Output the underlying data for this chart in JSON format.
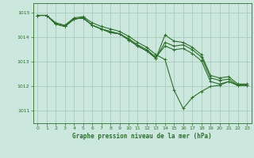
{
  "title": "Graphe pression niveau de la mer (hPa)",
  "background_color": "#cce8de",
  "grid_color": "#aaccbb",
  "line_color": "#2d6e2d",
  "xlim": [
    -0.5,
    23.5
  ],
  "ylim": [
    1010.5,
    1015.4
  ],
  "yticks": [
    1011,
    1012,
    1013,
    1014,
    1015
  ],
  "xticks": [
    0,
    1,
    2,
    3,
    4,
    5,
    6,
    7,
    8,
    9,
    10,
    11,
    12,
    13,
    14,
    15,
    16,
    17,
    18,
    19,
    20,
    21,
    22,
    23
  ],
  "series": [
    [
      1014.9,
      1014.9,
      1014.6,
      1014.5,
      1014.8,
      1014.85,
      1014.6,
      1014.45,
      1014.35,
      1014.25,
      1014.05,
      1013.8,
      1013.6,
      1013.3,
      1013.1,
      1011.85,
      1011.1,
      1011.55,
      1011.8,
      1012.0,
      1012.05,
      1012.2,
      1012.05,
      1012.05
    ],
    [
      1014.9,
      1014.9,
      1014.55,
      1014.45,
      1014.75,
      1014.8,
      1014.5,
      1014.35,
      1014.25,
      1014.15,
      1013.95,
      1013.7,
      1013.5,
      1013.2,
      1013.65,
      1013.5,
      1013.55,
      1013.35,
      1013.05,
      1012.2,
      1012.1,
      1012.2,
      1012.05,
      1012.05
    ],
    [
      1014.9,
      1014.9,
      1014.55,
      1014.45,
      1014.75,
      1014.8,
      1014.5,
      1014.35,
      1014.2,
      1014.15,
      1013.9,
      1013.65,
      1013.45,
      1013.15,
      1013.8,
      1013.65,
      1013.7,
      1013.5,
      1013.2,
      1012.35,
      1012.25,
      1012.3,
      1012.05,
      1012.05
    ],
    [
      1014.9,
      1014.9,
      1014.55,
      1014.45,
      1014.75,
      1014.8,
      1014.5,
      1014.35,
      1014.2,
      1014.15,
      1013.9,
      1013.65,
      1013.45,
      1013.15,
      1014.1,
      1013.85,
      1013.8,
      1013.6,
      1013.3,
      1012.45,
      1012.35,
      1012.4,
      1012.1,
      1012.1
    ]
  ]
}
